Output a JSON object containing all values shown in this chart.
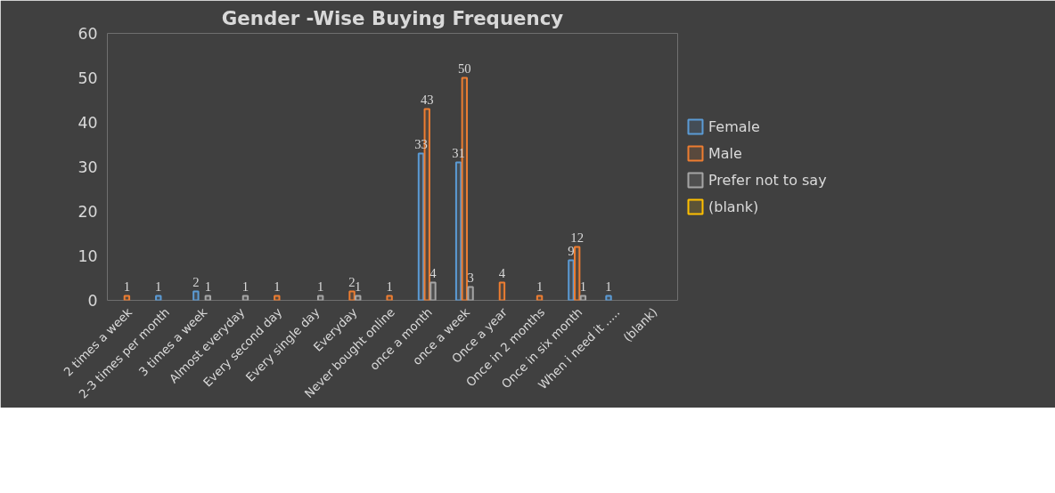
{
  "chart_data": {
    "type": "bar",
    "title": "Gender -Wise Buying Frequency",
    "categories": [
      "2 times a week",
      "2-3 times per month",
      "3 times a week",
      "Almost everyday",
      "Every second day",
      "Every single day",
      "Everyday",
      "Never bought online",
      "once a month",
      "once a week",
      "Once a year",
      "Once in 2 months",
      "Once in six month",
      "When i need it .....",
      "(blank)"
    ],
    "series": [
      {
        "name": "Female",
        "color": "#5b9bd5",
        "values": [
          null,
          1,
          2,
          null,
          null,
          null,
          null,
          null,
          33,
          31,
          null,
          null,
          9,
          1,
          null
        ]
      },
      {
        "name": "Male",
        "color": "#ed7d31",
        "values": [
          1,
          null,
          null,
          null,
          1,
          null,
          2,
          1,
          43,
          50,
          4,
          1,
          12,
          null,
          null
        ]
      },
      {
        "name": "Prefer not to say",
        "color": "#a5a5a5",
        "values": [
          null,
          null,
          1,
          1,
          null,
          1,
          1,
          null,
          4,
          3,
          null,
          null,
          1,
          null,
          null
        ]
      },
      {
        "name": "(blank)",
        "color": "#ffc000",
        "values": [
          null,
          null,
          null,
          null,
          null,
          null,
          null,
          null,
          null,
          null,
          null,
          null,
          null,
          null,
          null
        ]
      }
    ],
    "ylim": [
      0,
      60
    ],
    "yticks": [
      0,
      10,
      20,
      30,
      40,
      50,
      60
    ],
    "grid": false,
    "legend": "right",
    "data_labels": true
  }
}
